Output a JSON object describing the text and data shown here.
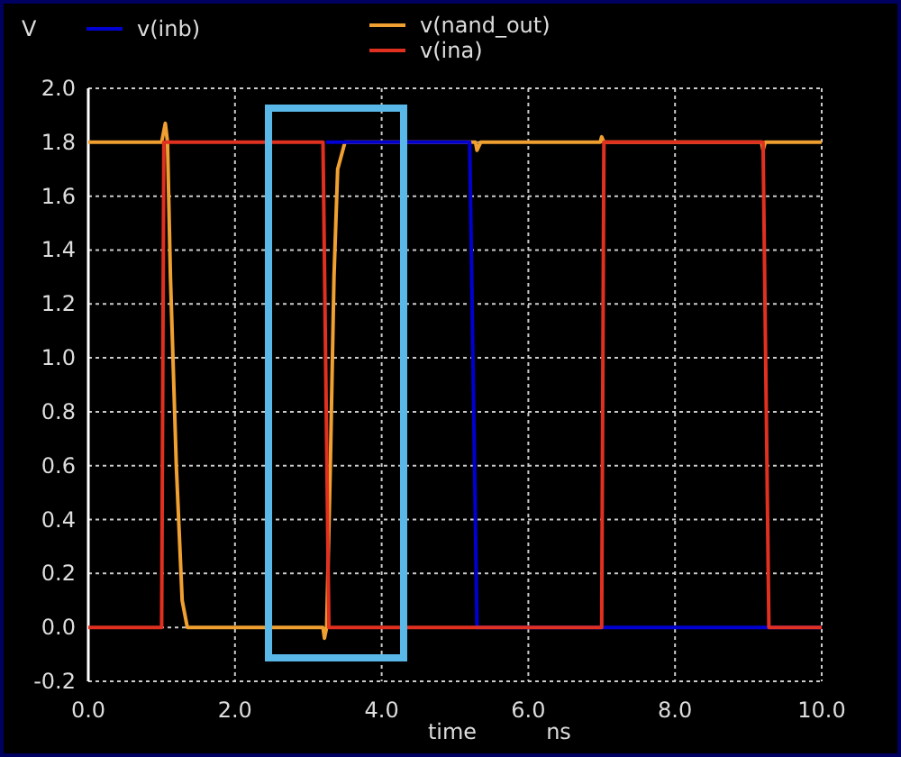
{
  "chart_data": {
    "type": "line",
    "ylabel": "V",
    "xlabel": "time",
    "annotations": [
      "ns"
    ],
    "xlim": [
      0,
      10
    ],
    "ylim": [
      -0.2,
      2.0
    ],
    "xticks": [
      {
        "value": 0,
        "label": "0.0"
      },
      {
        "value": 2,
        "label": "2.0"
      },
      {
        "value": 4,
        "label": "4.0"
      },
      {
        "value": 6,
        "label": "6.0"
      },
      {
        "value": 8,
        "label": "8.0"
      },
      {
        "value": 10,
        "label": "10.0"
      }
    ],
    "yticks": [
      {
        "value": -0.2,
        "label": "-0.2"
      },
      {
        "value": 0,
        "label": "0.0"
      },
      {
        "value": 0.2,
        "label": "0.2"
      },
      {
        "value": 0.4,
        "label": "0.4"
      },
      {
        "value": 0.6,
        "label": "0.6"
      },
      {
        "value": 0.8,
        "label": "0.8"
      },
      {
        "value": 1.0,
        "label": "1.0"
      },
      {
        "value": 1.2,
        "label": "1.2"
      },
      {
        "value": 1.4,
        "label": "1.4"
      },
      {
        "value": 1.6,
        "label": "1.6"
      },
      {
        "value": 1.8,
        "label": "1.8"
      },
      {
        "value": 2.0,
        "label": "2.0"
      }
    ],
    "grid": true,
    "legend": "top",
    "marker": "none",
    "line_style": "solid",
    "series": [
      {
        "name": "v(nand_out)",
        "color": "#f0a030",
        "x": [
          0,
          1.0,
          1.05,
          1.08,
          1.12,
          1.2,
          1.28,
          1.35,
          3.2,
          3.22,
          3.25,
          3.3,
          3.35,
          3.4,
          3.5,
          5.28,
          5.3,
          5.35,
          6.98,
          7.0,
          7.03,
          9.18,
          9.2,
          9.23,
          10
        ],
        "values": [
          1.8,
          1.8,
          1.87,
          1.8,
          1.3,
          0.6,
          0.1,
          0.0,
          0.0,
          -0.04,
          0.0,
          0.6,
          1.3,
          1.7,
          1.8,
          1.8,
          1.77,
          1.8,
          1.8,
          1.82,
          1.8,
          1.8,
          1.77,
          1.8,
          1.8
        ]
      },
      {
        "name": "v(inb)",
        "color": "#0000d0",
        "x": [
          3.24,
          5.2,
          5.3,
          10
        ],
        "values": [
          1.8,
          1.8,
          0,
          0
        ]
      },
      {
        "name": "v(ina)",
        "color": "#e03020",
        "x": [
          0,
          1.0,
          1.03,
          3.2,
          3.28,
          7.0,
          7.03,
          9.2,
          9.28,
          10
        ],
        "values": [
          0,
          0,
          1.8,
          1.8,
          0,
          0,
          1.8,
          1.8,
          0,
          0
        ]
      }
    ]
  }
}
